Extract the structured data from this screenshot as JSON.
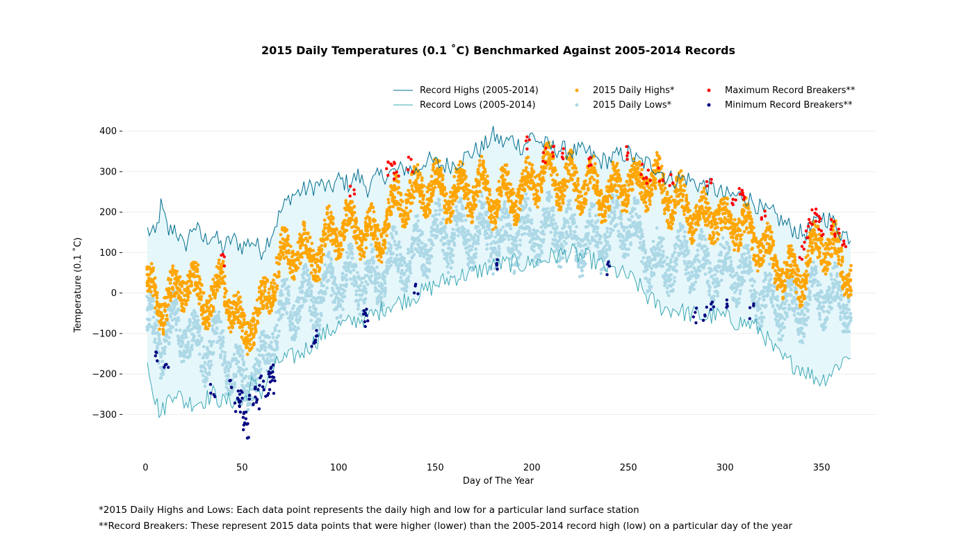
{
  "chart_data": {
    "type": "line",
    "title": "2015 Daily Temperatures (0.1 ˚C) Benchmarked Against 2005-2014 Records",
    "xlabel": "Day of The Year",
    "ylabel": "Temperature (0.1 ˚C)",
    "xlim": [
      -12,
      378
    ],
    "ylim": [
      -375,
      415
    ],
    "xticks": [
      0,
      50,
      100,
      150,
      200,
      250,
      300,
      350
    ],
    "yticks": [
      -300,
      -200,
      -100,
      0,
      100,
      200,
      300,
      400
    ],
    "grid": "horizontal",
    "legend_position": "top-right",
    "legend": [
      {
        "label": "Record Highs (2005-2014)",
        "kind": "line",
        "color": "#006d8f"
      },
      {
        "label": "Record Lows (2005-2014)",
        "kind": "line",
        "color": "#3aa8b4"
      },
      {
        "label": "2015 Daily Highs*",
        "kind": "marker",
        "color": "#ffa500"
      },
      {
        "label": "2015 Daily Lows*",
        "kind": "marker",
        "color": "#add8e6"
      },
      {
        "label": "Maximum Record Breakers**",
        "kind": "marker",
        "color": "#ff0000"
      },
      {
        "label": "Minimum Record Breakers**",
        "kind": "marker",
        "color": "#000080"
      }
    ],
    "fill_color": "#e6f7fb",
    "record_highs_anchors": {
      "x": [
        1,
        5,
        8,
        12,
        15,
        20,
        25,
        30,
        35,
        40,
        45,
        50,
        55,
        60,
        65,
        70,
        75,
        80,
        85,
        90,
        95,
        100,
        105,
        110,
        115,
        120,
        125,
        130,
        135,
        140,
        145,
        150,
        155,
        160,
        165,
        170,
        175,
        180,
        185,
        190,
        195,
        200,
        205,
        210,
        215,
        220,
        225,
        230,
        235,
        240,
        245,
        250,
        255,
        260,
        265,
        270,
        275,
        280,
        285,
        290,
        295,
        300,
        305,
        310,
        315,
        320,
        325,
        330,
        335,
        340,
        345,
        350,
        355,
        360,
        365
      ],
      "y": [
        155,
        140,
        215,
        150,
        165,
        110,
        170,
        130,
        145,
        110,
        135,
        115,
        130,
        105,
        145,
        200,
        240,
        250,
        260,
        270,
        255,
        280,
        270,
        290,
        260,
        285,
        295,
        300,
        310,
        300,
        330,
        320,
        315,
        320,
        335,
        350,
        360,
        390,
        370,
        380,
        360,
        390,
        370,
        360,
        355,
        350,
        350,
        345,
        325,
        330,
        340,
        345,
        325,
        320,
        310,
        285,
        280,
        285,
        270,
        265,
        255,
        240,
        240,
        240,
        225,
        200,
        195,
        175,
        160,
        145,
        160,
        190,
        180,
        150,
        140
      ]
    },
    "record_lows_anchors": {
      "x": [
        1,
        5,
        8,
        12,
        15,
        20,
        25,
        30,
        35,
        40,
        45,
        50,
        55,
        60,
        65,
        70,
        75,
        80,
        85,
        90,
        95,
        100,
        105,
        110,
        115,
        120,
        125,
        130,
        135,
        140,
        145,
        150,
        155,
        160,
        165,
        170,
        175,
        180,
        185,
        190,
        195,
        200,
        205,
        210,
        215,
        220,
        225,
        230,
        235,
        240,
        245,
        250,
        255,
        260,
        265,
        270,
        275,
        280,
        285,
        290,
        295,
        300,
        305,
        310,
        315,
        320,
        325,
        330,
        335,
        340,
        345,
        350,
        355,
        360,
        365
      ],
      "y": [
        -160,
        -265,
        -300,
        -260,
        -240,
        -270,
        -270,
        -265,
        -250,
        -270,
        -265,
        -275,
        -225,
        -245,
        -200,
        -165,
        -160,
        -150,
        -130,
        -110,
        -95,
        -80,
        -75,
        -65,
        -60,
        -50,
        -30,
        -25,
        -15,
        -5,
        5,
        20,
        30,
        40,
        45,
        50,
        60,
        65,
        70,
        75,
        70,
        75,
        80,
        90,
        95,
        100,
        90,
        85,
        70,
        60,
        50,
        40,
        20,
        -10,
        -30,
        -40,
        -40,
        -50,
        -55,
        -60,
        -55,
        -60,
        -70,
        -75,
        -80,
        -100,
        -140,
        -165,
        -175,
        -185,
        -205,
        -215,
        -195,
        -170,
        -150
      ]
    },
    "highs_2015_anchors": {
      "x": [
        1,
        8,
        15,
        20,
        25,
        30,
        35,
        40,
        45,
        50,
        55,
        60,
        65,
        70,
        75,
        80,
        85,
        90,
        95,
        100,
        105,
        110,
        115,
        120,
        125,
        130,
        135,
        140,
        145,
        150,
        155,
        160,
        165,
        170,
        175,
        180,
        185,
        190,
        195,
        200,
        205,
        210,
        215,
        220,
        225,
        230,
        235,
        240,
        245,
        250,
        255,
        260,
        265,
        270,
        275,
        280,
        285,
        290,
        295,
        300,
        305,
        310,
        315,
        320,
        325,
        330,
        335,
        340,
        345,
        350,
        355,
        360,
        365
      ],
      "y": [
        10,
        -30,
        -5,
        35,
        5,
        -10,
        -20,
        40,
        -40,
        -100,
        -70,
        -50,
        30,
        80,
        100,
        110,
        90,
        100,
        140,
        160,
        170,
        160,
        150,
        130,
        180,
        230,
        240,
        240,
        260,
        270,
        240,
        250,
        260,
        250,
        260,
        230,
        250,
        250,
        240,
        280,
        300,
        300,
        280,
        280,
        270,
        270,
        250,
        240,
        260,
        280,
        260,
        280,
        270,
        240,
        230,
        210,
        190,
        180,
        200,
        160,
        180,
        160,
        140,
        110,
        80,
        50,
        40,
        40,
        100,
        130,
        110,
        80,
        40
      ]
    },
    "lows_2015_anchors": {
      "x": [
        1,
        8,
        15,
        20,
        25,
        30,
        35,
        40,
        45,
        50,
        55,
        60,
        65,
        70,
        75,
        80,
        85,
        90,
        95,
        100,
        105,
        110,
        115,
        120,
        125,
        130,
        135,
        140,
        145,
        150,
        155,
        160,
        165,
        170,
        175,
        180,
        185,
        190,
        195,
        200,
        205,
        210,
        215,
        220,
        225,
        230,
        235,
        240,
        245,
        250,
        255,
        260,
        265,
        270,
        275,
        280,
        285,
        290,
        295,
        300,
        305,
        310,
        315,
        320,
        325,
        330,
        335,
        340,
        345,
        350,
        355,
        360,
        365
      ],
      "y": [
        -70,
        -120,
        -80,
        -90,
        -130,
        -140,
        -130,
        -140,
        -190,
        -220,
        -200,
        -190,
        -110,
        -60,
        -30,
        -20,
        -20,
        -10,
        10,
        20,
        30,
        40,
        30,
        20,
        70,
        80,
        90,
        100,
        120,
        140,
        140,
        140,
        150,
        140,
        160,
        140,
        130,
        140,
        150,
        150,
        160,
        160,
        150,
        140,
        130,
        130,
        130,
        150,
        170,
        170,
        140,
        90,
        70,
        80,
        80,
        90,
        70,
        60,
        60,
        50,
        60,
        40,
        10,
        -20,
        -10,
        -30,
        -40,
        -30,
        -20,
        0,
        -20,
        -20,
        -20
      ]
    },
    "max_record_breakers": {
      "x": [
        40,
        107,
        126,
        128,
        130,
        137,
        198,
        207,
        210,
        215,
        230,
        250,
        258,
        260,
        267,
        272,
        292,
        305,
        308,
        310,
        320,
        340,
        342,
        344,
        346,
        348,
        350,
        356,
        358,
        362
      ],
      "y": [
        82,
        255,
        305,
        330,
        300,
        318,
        370,
        340,
        355,
        350,
        330,
        345,
        300,
        290,
        295,
        280,
        270,
        230,
        255,
        250,
        200,
        100,
        140,
        170,
        195,
        175,
        160,
        170,
        150,
        115
      ]
    },
    "min_record_breakers": {
      "x": [
        5,
        11,
        35,
        45,
        47,
        48,
        49,
        50,
        51,
        52,
        53,
        55,
        57,
        58,
        60,
        62,
        64,
        65,
        66,
        67,
        87,
        88,
        114,
        115,
        140,
        183,
        240,
        285,
        290,
        293,
        300,
        314
      ],
      "y": [
        -155,
        -195,
        -240,
        -230,
        -260,
        -280,
        -250,
        -270,
        -300,
        -320,
        -340,
        -260,
        -240,
        -275,
        -220,
        -250,
        -195,
        -230,
        -190,
        -220,
        -115,
        -105,
        -55,
        -65,
        5,
        72,
        58,
        -55,
        -50,
        -40,
        -30,
        -45
      ]
    }
  },
  "footnotes": {
    "line1": "*2015 Daily Highs and Lows: Each data point represents the daily high and low for a particular land surface station",
    "line2": "**Record Breakers: These represent 2015 data points that were higher (lower) than the 2005-2014 record high (low) on a particular day of the year"
  }
}
